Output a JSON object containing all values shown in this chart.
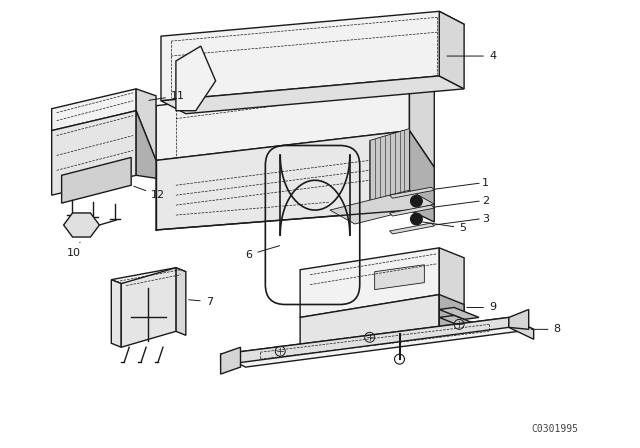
{
  "background_color": "#ffffff",
  "line_color": "#1a1a1a",
  "figure_width": 6.4,
  "figure_height": 4.48,
  "dpi": 100,
  "watermark": "C0301995",
  "lw_main": 1.0,
  "lw_thin": 0.6,
  "lw_dashed": 0.5,
  "gray_light": "#f2f2f2",
  "gray_mid": "#d8d8d8",
  "gray_dark": "#b0b0b0"
}
